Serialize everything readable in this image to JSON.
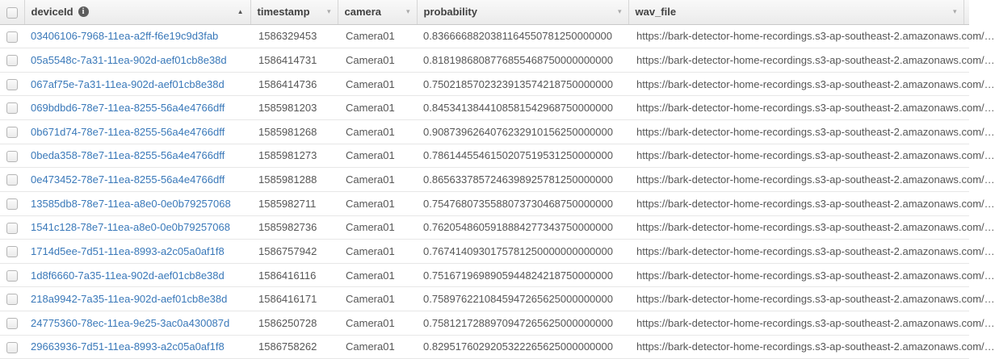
{
  "table": {
    "columns": [
      {
        "label": "deviceId",
        "sort_indicator": "ascending",
        "has_info_icon": true
      },
      {
        "label": "timestamp",
        "sort_indicator": "menu"
      },
      {
        "label": "camera",
        "sort_indicator": "menu"
      },
      {
        "label": "probability",
        "sort_indicator": "menu"
      },
      {
        "label": "wav_file",
        "sort_indicator": "menu"
      }
    ],
    "rows": [
      {
        "deviceId": "03406106-7968-11ea-a2ff-f6e19c9d3fab",
        "timestamp": "1586329453",
        "camera": "Camera01",
        "probability": "0.8366668820381164550781250000000",
        "wav_file": "https://bark-detector-home-recordings.s3-ap-southeast-2.amazonaws.com/…"
      },
      {
        "deviceId": "05a5548c-7a31-11ea-902d-aef01cb8e38d",
        "timestamp": "1586414731",
        "camera": "Camera01",
        "probability": "0.8181986808776855468750000000000",
        "wav_file": "https://bark-detector-home-recordings.s3-ap-southeast-2.amazonaws.com/…"
      },
      {
        "deviceId": "067af75e-7a31-11ea-902d-aef01cb8e38d",
        "timestamp": "1586414736",
        "camera": "Camera01",
        "probability": "0.7502185702323913574218750000000",
        "wav_file": "https://bark-detector-home-recordings.s3-ap-southeast-2.amazonaws.com/…"
      },
      {
        "deviceId": "069bdbd6-78e7-11ea-8255-56a4e4766dff",
        "timestamp": "1585981203",
        "camera": "Camera01",
        "probability": "0.8453413844108581542968750000000",
        "wav_file": "https://bark-detector-home-recordings.s3-ap-southeast-2.amazonaws.com/…"
      },
      {
        "deviceId": "0b671d74-78e7-11ea-8255-56a4e4766dff",
        "timestamp": "1585981268",
        "camera": "Camera01",
        "probability": "0.9087396264076232910156250000000",
        "wav_file": "https://bark-detector-home-recordings.s3-ap-southeast-2.amazonaws.com/…"
      },
      {
        "deviceId": "0beda358-78e7-11ea-8255-56a4e4766dff",
        "timestamp": "1585981273",
        "camera": "Camera01",
        "probability": "0.7861445546150207519531250000000",
        "wav_file": "https://bark-detector-home-recordings.s3-ap-southeast-2.amazonaws.com/…"
      },
      {
        "deviceId": "0e473452-78e7-11ea-8255-56a4e4766dff",
        "timestamp": "1585981288",
        "camera": "Camera01",
        "probability": "0.8656337857246398925781250000000",
        "wav_file": "https://bark-detector-home-recordings.s3-ap-southeast-2.amazonaws.com/…"
      },
      {
        "deviceId": "13585db8-78e7-11ea-a8e0-0e0b79257068",
        "timestamp": "1585982711",
        "camera": "Camera01",
        "probability": "0.7547680735588073730468750000000",
        "wav_file": "https://bark-detector-home-recordings.s3-ap-southeast-2.amazonaws.com/…"
      },
      {
        "deviceId": "1541c128-78e7-11ea-a8e0-0e0b79257068",
        "timestamp": "1585982736",
        "camera": "Camera01",
        "probability": "0.7620548605918884277343750000000",
        "wav_file": "https://bark-detector-home-recordings.s3-ap-southeast-2.amazonaws.com/…"
      },
      {
        "deviceId": "1714d5ee-7d51-11ea-8993-a2c05a0af1f8",
        "timestamp": "1586757942",
        "camera": "Camera01",
        "probability": "0.7674140930175781250000000000000",
        "wav_file": "https://bark-detector-home-recordings.s3-ap-southeast-2.amazonaws.com/…"
      },
      {
        "deviceId": "1d8f6660-7a35-11ea-902d-aef01cb8e38d",
        "timestamp": "1586416116",
        "camera": "Camera01",
        "probability": "0.7516719698905944824218750000000",
        "wav_file": "https://bark-detector-home-recordings.s3-ap-southeast-2.amazonaws.com/…"
      },
      {
        "deviceId": "218a9942-7a35-11ea-902d-aef01cb8e38d",
        "timestamp": "1586416171",
        "camera": "Camera01",
        "probability": "0.7589762210845947265625000000000",
        "wav_file": "https://bark-detector-home-recordings.s3-ap-southeast-2.amazonaws.com/…"
      },
      {
        "deviceId": "24775360-78ec-11ea-9e25-3ac0a430087d",
        "timestamp": "1586250728",
        "camera": "Camera01",
        "probability": "0.7581217288970947265625000000000",
        "wav_file": "https://bark-detector-home-recordings.s3-ap-southeast-2.amazonaws.com/…"
      },
      {
        "deviceId": "29663936-7d51-11ea-8993-a2c05a0af1f8",
        "timestamp": "1586758262",
        "camera": "Camera01",
        "probability": "0.8295176029205322265625000000000",
        "wav_file": "https://bark-detector-home-recordings.s3-ap-southeast-2.amazonaws.com/…"
      }
    ]
  },
  "icons": {
    "info": "i",
    "sort_ascending": "▲",
    "sort_menu": "▾"
  },
  "colors": {
    "link": "#3978b9",
    "header_text": "#424242",
    "cell_text": "#565656"
  }
}
